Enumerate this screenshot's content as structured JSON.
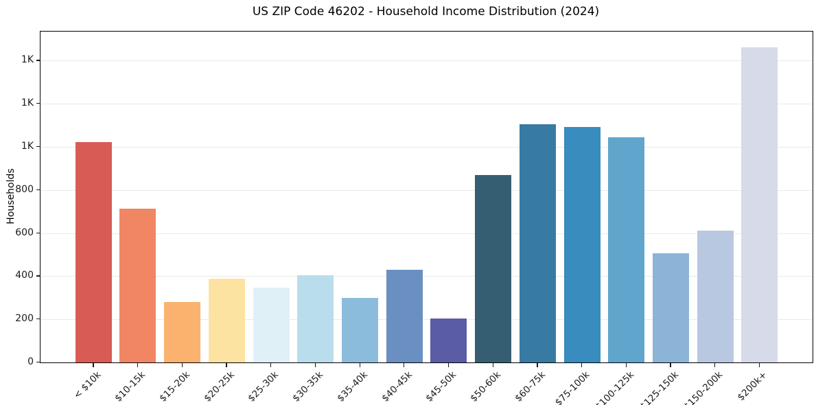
{
  "chart_data": {
    "type": "bar",
    "title": "US ZIP Code 46202 - Household Income Distribution (2024)",
    "xlabel": "",
    "ylabel": "Households",
    "categories": [
      "< $10k",
      "$10-15k",
      "$15-20k",
      "$20-25k",
      "$25-30k",
      "$30-35k",
      "$35-40k",
      "$40-45k",
      "$45-50k",
      "$50-60k",
      "$60-75k",
      "$75-100k",
      "$100-125k",
      "$125-150k",
      "$150-200k",
      "$200k+"
    ],
    "values": [
      1022,
      713,
      279,
      389,
      348,
      406,
      300,
      431,
      204,
      869,
      1104,
      1092,
      1046,
      508,
      612,
      1461
    ],
    "bar_colors": [
      "#d95b55",
      "#f08663",
      "#fab26e",
      "#fde3a1",
      "#e0f0f7",
      "#b9ddec",
      "#8cbcdc",
      "#6990c0",
      "#5a5ca6",
      "#365e72",
      "#377ba3",
      "#388cbe",
      "#60a6cc",
      "#8cb4d7",
      "#b9c8e1",
      "#d7dae8"
    ],
    "ylim": [
      0,
      1535
    ],
    "yticks": {
      "values": [
        0,
        200,
        400,
        600,
        800,
        1000,
        1200,
        1400
      ],
      "labels": [
        "0",
        "200",
        "400",
        "600",
        "800",
        "1K",
        "1K",
        "1K"
      ]
    },
    "grid": "horizontal",
    "legend": "none",
    "x_tick_rotation_deg": 45
  },
  "colors": {
    "background": "#ffffff",
    "spine": "#000000",
    "gridline": "#e9e9e9",
    "text": "#1a1a1a"
  }
}
